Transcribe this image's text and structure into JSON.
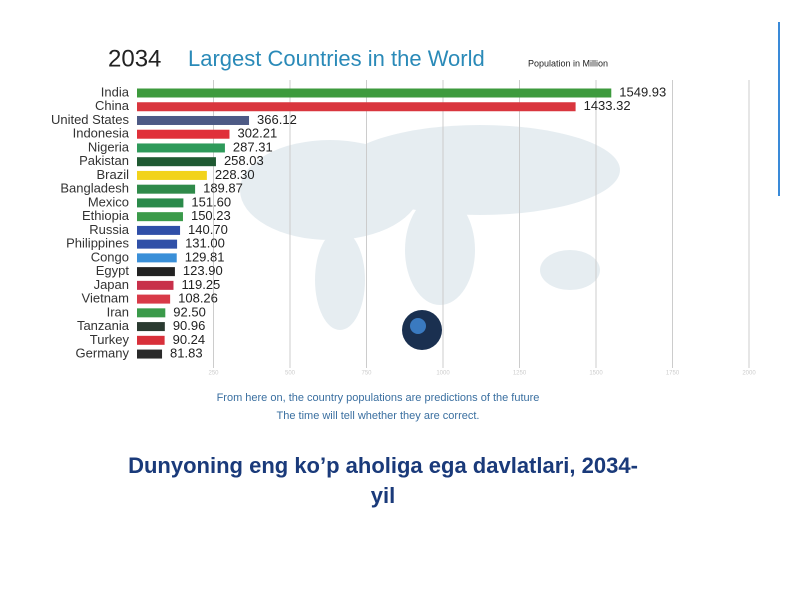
{
  "chart_data": {
    "type": "bar",
    "orientation": "horizontal",
    "year": "2034",
    "title": "Largest Countries in the World",
    "subtitle": "Population in Million",
    "categories": [
      "India",
      "China",
      "United States",
      "Indonesia",
      "Nigeria",
      "Pakistan",
      "Brazil",
      "Bangladesh",
      "Mexico",
      "Ethiopia",
      "Russia",
      "Philippines",
      "Congo",
      "Egypt",
      "Japan",
      "Vietnam",
      "Iran",
      "Tanzania",
      "Turkey",
      "Germany"
    ],
    "values": [
      1549.93,
      1433.32,
      366.12,
      302.21,
      287.31,
      258.03,
      228.3,
      189.87,
      151.6,
      150.23,
      140.7,
      131,
      129.81,
      123.9,
      119.25,
      108.26,
      92.5,
      90.96,
      90.24,
      81.83
    ],
    "value_labels": [
      "1549.93",
      "1433.32",
      "366.12",
      "302.21",
      "287.31",
      "258.03",
      "228.30",
      "189.87",
      "151.60",
      "150.23",
      "140.70",
      "131.00",
      "129.81",
      "123.90",
      "119.25",
      "108.26",
      "92.50",
      "90.96",
      "90.24",
      "81.83"
    ],
    "colors": [
      "#3d9a3d",
      "#d9363e",
      "#4d5a85",
      "#e0303a",
      "#2e9a5a",
      "#1f5a32",
      "#f2d31b",
      "#2f8a4a",
      "#2a8a4a",
      "#3a9a4a",
      "#2f4fa8",
      "#3050a8",
      "#3a8fd8",
      "#222222",
      "#c8304a",
      "#d83a48",
      "#3a9a4a",
      "#2a3a30",
      "#d8303a",
      "#2a2a2a"
    ],
    "xlim": [
      0,
      2000
    ],
    "xticks": [
      250,
      500,
      750,
      1000,
      1250,
      1500,
      1750,
      2000
    ],
    "grid": true,
    "notes": [
      "From here on, the country populations are predictions of the future",
      "The time will tell whether they are correct."
    ]
  },
  "caption": [
    "Dunyoning eng ko’p aholiga ega davlatlari, 2034-",
    "yil"
  ]
}
